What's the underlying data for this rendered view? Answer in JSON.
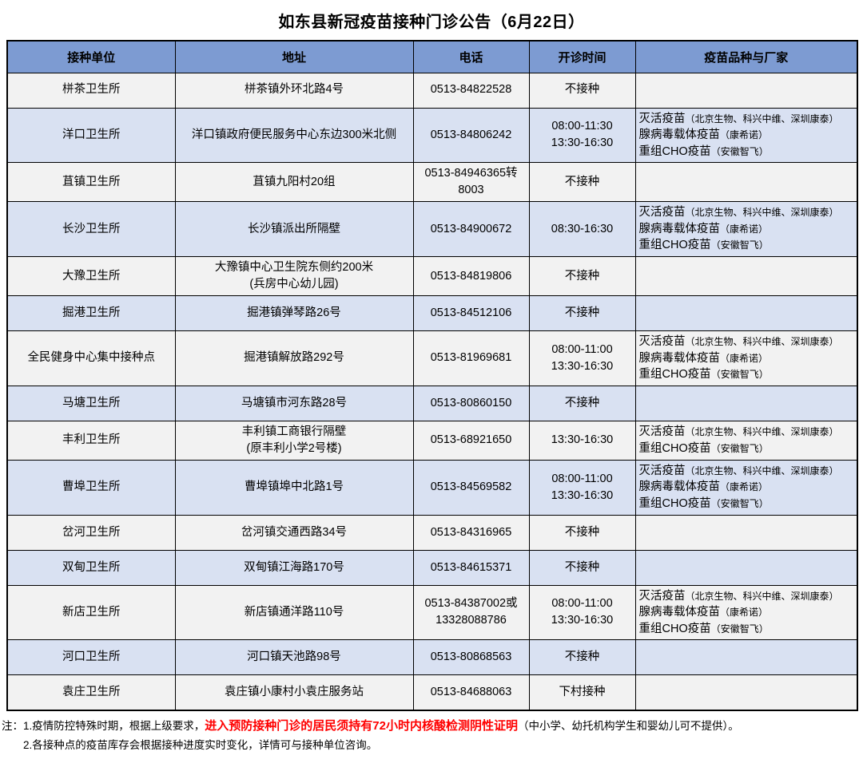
{
  "title": "如东县新冠疫苗接种门诊公告（6月22日）",
  "colors": {
    "header_bg": "#7D9BD2",
    "row_blue": "#D9E1F2",
    "row_gray": "#F2F2F2",
    "border": "#000000",
    "highlight_red": "#FF0000"
  },
  "table": {
    "headers": [
      "接种单位",
      "地址",
      "电话",
      "开诊时间",
      "疫苗品种与厂家"
    ],
    "rows": [
      {
        "unit": "栟茶卫生所",
        "address": [
          "栟茶镇外环北路4号"
        ],
        "phone": [
          "0513-84822528"
        ],
        "time": [
          "不接种"
        ],
        "vaccines": []
      },
      {
        "unit": "洋口卫生所",
        "address": [
          "洋口镇政府便民服务中心东边300米北侧"
        ],
        "phone": [
          "0513-84806242"
        ],
        "time": [
          "08:00-11:30",
          "13:30-16:30"
        ],
        "vaccines": [
          {
            "name": "灭活疫苗",
            "maker": "（北京生物、科兴中维、深圳康泰）"
          },
          {
            "name": "腺病毒载体疫苗",
            "maker": "（康希诺）"
          },
          {
            "name": "重组CHO疫苗",
            "maker": "（安徽智飞）"
          }
        ]
      },
      {
        "unit": "苴镇卫生所",
        "address": [
          "苴镇九阳村20组"
        ],
        "phone": [
          "0513-84946365转",
          "8003"
        ],
        "time": [
          "不接种"
        ],
        "vaccines": []
      },
      {
        "unit": "长沙卫生所",
        "address": [
          "长沙镇派出所隔壁"
        ],
        "phone": [
          "0513-84900672"
        ],
        "time": [
          "08:30-16:30"
        ],
        "vaccines": [
          {
            "name": "灭活疫苗",
            "maker": "（北京生物、科兴中维、深圳康泰）"
          },
          {
            "name": "腺病毒载体疫苗",
            "maker": "（康希诺）"
          },
          {
            "name": "重组CHO疫苗",
            "maker": "（安徽智飞）"
          }
        ]
      },
      {
        "unit": "大豫卫生所",
        "address": [
          "大豫镇中心卫生院东侧约200米",
          "(兵房中心幼儿园)"
        ],
        "phone": [
          "0513-84819806"
        ],
        "time": [
          "不接种"
        ],
        "vaccines": []
      },
      {
        "unit": "掘港卫生所",
        "address": [
          "掘港镇弹琴路26号"
        ],
        "phone": [
          "0513-84512106"
        ],
        "time": [
          "不接种"
        ],
        "vaccines": []
      },
      {
        "unit": "全民健身中心集中接种点",
        "address": [
          "掘港镇解放路292号"
        ],
        "phone": [
          "0513-81969681"
        ],
        "time": [
          "08:00-11:00",
          "13:30-16:30"
        ],
        "vaccines": [
          {
            "name": "灭活疫苗",
            "maker": "（北京生物、科兴中维、深圳康泰）"
          },
          {
            "name": "腺病毒载体疫苗",
            "maker": "（康希诺）"
          },
          {
            "name": "重组CHO疫苗",
            "maker": "（安徽智飞）"
          }
        ]
      },
      {
        "unit": "马塘卫生所",
        "address": [
          "马塘镇市河东路28号"
        ],
        "phone": [
          "0513-80860150"
        ],
        "time": [
          "不接种"
        ],
        "vaccines": []
      },
      {
        "unit": "丰利卫生所",
        "address": [
          "丰利镇工商银行隔壁",
          "(原丰利小学2号楼)"
        ],
        "phone": [
          "0513-68921650"
        ],
        "time": [
          "13:30-16:30"
        ],
        "vaccines": [
          {
            "name": "灭活疫苗",
            "maker": "（北京生物、科兴中维、深圳康泰）"
          },
          {
            "name": "重组CHO疫苗",
            "maker": "（安徽智飞）"
          }
        ]
      },
      {
        "unit": "曹埠卫生所",
        "address": [
          "曹埠镇埠中北路1号"
        ],
        "phone": [
          "0513-84569582"
        ],
        "time": [
          "08:00-11:00",
          "13:30-16:30"
        ],
        "vaccines": [
          {
            "name": "灭活疫苗",
            "maker": "（北京生物、科兴中维、深圳康泰）"
          },
          {
            "name": "腺病毒载体疫苗",
            "maker": "（康希诺）"
          },
          {
            "name": "重组CHO疫苗",
            "maker": "（安徽智飞）"
          }
        ]
      },
      {
        "unit": "岔河卫生所",
        "address": [
          "岔河镇交通西路34号"
        ],
        "phone": [
          "0513-84316965"
        ],
        "time": [
          "不接种"
        ],
        "vaccines": []
      },
      {
        "unit": "双甸卫生所",
        "address": [
          "双甸镇江海路170号"
        ],
        "phone": [
          "0513-84615371"
        ],
        "time": [
          "不接种"
        ],
        "vaccines": []
      },
      {
        "unit": "新店卫生所",
        "address": [
          "新店镇通洋路110号"
        ],
        "phone": [
          "0513-84387002或",
          "13328088786"
        ],
        "time": [
          "08:00-11:00",
          "13:30-16:30"
        ],
        "vaccines": [
          {
            "name": "灭活疫苗",
            "maker": "（北京生物、科兴中维、深圳康泰）"
          },
          {
            "name": "腺病毒载体疫苗",
            "maker": "（康希诺）"
          },
          {
            "name": "重组CHO疫苗",
            "maker": "（安徽智飞）"
          }
        ]
      },
      {
        "unit": "河口卫生所",
        "address": [
          "河口镇天池路98号"
        ],
        "phone": [
          "0513-80868563"
        ],
        "time": [
          "不接种"
        ],
        "vaccines": []
      },
      {
        "unit": "袁庄卫生所",
        "address": [
          "袁庄镇小康村小袁庄服务站"
        ],
        "phone": [
          "0513-84688063"
        ],
        "time": [
          "下村接种"
        ],
        "vaccines": []
      }
    ]
  },
  "notes": {
    "prefix": "注：",
    "note1_before": "1.疫情防控特殊时期，根据上级要求，",
    "note1_highlight": "进入预防接种门诊的居民须持有72小时内核酸检测阴性证明",
    "note1_after": "（中小学、幼托机构学生和婴幼儿可不提供）。",
    "note2": "2.各接种点的疫苗库存会根据接种进度实时变化，详情可与接种单位咨询。"
  }
}
